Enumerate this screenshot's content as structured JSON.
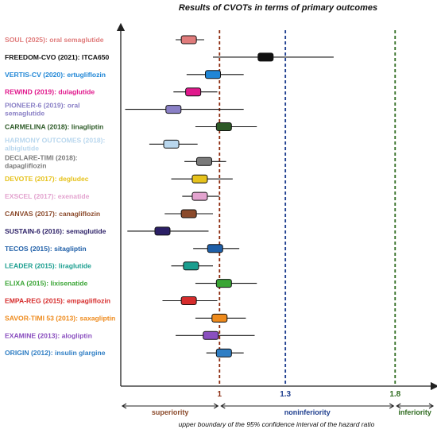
{
  "chart_data": {
    "type": "forest",
    "title": "Results of CVOTs in terms of primary outcomes",
    "xlabel": "upper boundary of the 95% confidence interval of the hazard ratio",
    "xlim": [
      0.55,
      1.98
    ],
    "reference_lines": [
      {
        "value": 1,
        "label": "1",
        "color": "#8b2a0e"
      },
      {
        "value": 1.3,
        "label": "1.3",
        "color": "#1f3f8f"
      },
      {
        "value": 1.8,
        "label": "1.8",
        "color": "#2e6b1f"
      }
    ],
    "regions": [
      {
        "label": "superiority",
        "color": "#8b4a2b"
      },
      {
        "label": "noninferiority",
        "color": "#1f3f8f"
      },
      {
        "label": "inferiority",
        "color": "#2e6b1f"
      }
    ],
    "trials": [
      {
        "name": "SOUL (2025): oral semaglutide",
        "color": "#e07b7b",
        "hr": 0.86,
        "ci_low": 0.8,
        "ci_high": 0.93
      },
      {
        "name": "FREEDOM-CVO (2021): ITCA650",
        "color": "#111111",
        "hr": 1.21,
        "ci_low": 0.97,
        "ci_high": 1.52
      },
      {
        "name": "VERTIS-CV (2020): ertugliflozin",
        "color": "#1f86d6",
        "hr": 0.97,
        "ci_low": 0.85,
        "ci_high": 1.11
      },
      {
        "name": "REWIND (2019): dulaglutide",
        "color": "#e0188c",
        "hr": 0.88,
        "ci_low": 0.79,
        "ci_high": 0.99
      },
      {
        "name": "PIONEER-6 (2019): oral semaglutide",
        "color": "#8a80c6",
        "hr": 0.79,
        "ci_low": 0.57,
        "ci_high": 1.11
      },
      {
        "name": "CARMELINA (2018): linagliptin",
        "color": "#2d5a27",
        "hr": 1.02,
        "ci_low": 0.89,
        "ci_high": 1.17
      },
      {
        "name": "HARMONY OUTCOMES (2018): albiglutide",
        "color": "#b9d7ee",
        "hr": 0.78,
        "ci_low": 0.68,
        "ci_high": 0.9
      },
      {
        "name": "DECLARE-TIMI (2018): dapagliflozin",
        "color": "#7a7a7a",
        "hr": 0.93,
        "ci_low": 0.84,
        "ci_high": 1.03
      },
      {
        "name": "DEVOTE (2017): degludec",
        "color": "#e6c21c",
        "hr": 0.91,
        "ci_low": 0.78,
        "ci_high": 1.06
      },
      {
        "name": "EXSCEL (2017): exenatide",
        "color": "#e3a3cf",
        "hr": 0.91,
        "ci_low": 0.83,
        "ci_high": 1.0
      },
      {
        "name": "CANVAS (2017): canagliflozin",
        "color": "#8b4a2b",
        "hr": 0.86,
        "ci_low": 0.75,
        "ci_high": 0.97
      },
      {
        "name": "SUSTAIN-6 (2016): semaglutide",
        "color": "#2b1f66",
        "hr": 0.74,
        "ci_low": 0.58,
        "ci_high": 0.95
      },
      {
        "name": "TECOS (2015): sitagliptin",
        "color": "#1f5fa8",
        "hr": 0.98,
        "ci_low": 0.88,
        "ci_high": 1.09
      },
      {
        "name": "LEADER (2015): liraglutide",
        "color": "#1a9e8f",
        "hr": 0.87,
        "ci_low": 0.78,
        "ci_high": 0.97
      },
      {
        "name": "ELIXA (2015): lixisenatide",
        "color": "#3aa535",
        "hr": 1.02,
        "ci_low": 0.89,
        "ci_high": 1.17
      },
      {
        "name": "EMPA-REG (2015): empagliflozin",
        "color": "#d62c2c",
        "hr": 0.86,
        "ci_low": 0.74,
        "ci_high": 0.99
      },
      {
        "name": "SAVOR-TIMI 53 (2013): saxagliptin",
        "color": "#ee8a1c",
        "hr": 1.0,
        "ci_low": 0.89,
        "ci_high": 1.12
      },
      {
        "name": "EXAMINE (2013): alogliptin",
        "color": "#8a4fbf",
        "hr": 0.96,
        "ci_low": 0.8,
        "ci_high": 1.16
      },
      {
        "name": "ORIGIN (2012): insulin glargine",
        "color": "#2f7ec4",
        "hr": 1.02,
        "ci_low": 0.94,
        "ci_high": 1.11
      }
    ]
  }
}
